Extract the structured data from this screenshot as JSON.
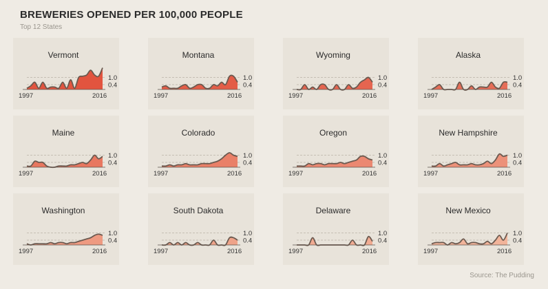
{
  "title": "BREWERIES OPENED PER 100,000 PEOPLE",
  "subtitle": "Top 12 States",
  "source": "Source: The Pudding",
  "colors": {
    "background": "#efebe4",
    "panel": "#e8e3da",
    "line": "#6b5a50",
    "ramp_high": "#e2543f",
    "ramp_low": "#f2b49a"
  },
  "chart_data": {
    "type": "area",
    "x": [
      1997,
      1998,
      1999,
      2000,
      2001,
      2002,
      2003,
      2004,
      2005,
      2006,
      2007,
      2008,
      2009,
      2010,
      2011,
      2012,
      2013,
      2014,
      2015,
      2016
    ],
    "x_tick_labels": [
      "1997",
      "2016"
    ],
    "reference_lines": [
      1.0,
      0.4
    ],
    "reference_labels": [
      "1.0",
      "0.4"
    ],
    "ylim": [
      0,
      1.8
    ],
    "grid": false,
    "series": [
      {
        "name": "Vermont",
        "values": [
          0.1,
          0.3,
          0.6,
          0.1,
          0.6,
          0.1,
          0.2,
          0.2,
          0.1,
          0.6,
          0.1,
          0.8,
          0.1,
          1.0,
          1.1,
          1.2,
          1.6,
          1.2,
          1.1,
          1.8
        ]
      },
      {
        "name": "Montana",
        "values": [
          0.2,
          0.3,
          0.1,
          0.1,
          0.1,
          0.3,
          0.4,
          0.1,
          0.2,
          0.4,
          0.4,
          0.1,
          0.1,
          0.4,
          0.3,
          0.6,
          0.4,
          1.1,
          1.1,
          0.6
        ]
      },
      {
        "name": "Wyoming",
        "values": [
          0.0,
          0.0,
          0.4,
          0.0,
          0.2,
          0.0,
          0.4,
          0.4,
          0.0,
          0.0,
          0.4,
          0.0,
          0.0,
          0.4,
          0.1,
          0.2,
          0.6,
          0.8,
          1.0,
          0.6
        ]
      },
      {
        "name": "Alaska",
        "values": [
          0.0,
          0.2,
          0.4,
          0.0,
          0.0,
          0.0,
          0.0,
          0.6,
          0.0,
          0.0,
          0.3,
          0.0,
          0.2,
          0.2,
          0.2,
          0.6,
          0.2,
          0.1,
          0.6,
          0.6
        ]
      },
      {
        "name": "Maine",
        "values": [
          0.1,
          0.1,
          0.5,
          0.4,
          0.4,
          0.1,
          0.0,
          0.0,
          0.1,
          0.1,
          0.1,
          0.2,
          0.2,
          0.3,
          0.4,
          0.3,
          0.6,
          1.0,
          0.7,
          0.9
        ]
      },
      {
        "name": "Colorado",
        "values": [
          0.1,
          0.1,
          0.2,
          0.1,
          0.2,
          0.2,
          0.3,
          0.2,
          0.2,
          0.2,
          0.3,
          0.3,
          0.3,
          0.4,
          0.5,
          0.7,
          1.0,
          1.2,
          1.0,
          0.9
        ]
      },
      {
        "name": "Oregon",
        "values": [
          0.1,
          0.1,
          0.1,
          0.3,
          0.2,
          0.3,
          0.3,
          0.2,
          0.3,
          0.3,
          0.3,
          0.4,
          0.3,
          0.4,
          0.5,
          0.6,
          0.9,
          0.9,
          0.7,
          0.6
        ]
      },
      {
        "name": "New Hampshire",
        "values": [
          0.1,
          0.1,
          0.3,
          0.1,
          0.2,
          0.3,
          0.4,
          0.2,
          0.2,
          0.2,
          0.3,
          0.2,
          0.2,
          0.3,
          0.5,
          0.3,
          0.6,
          1.1,
          0.9,
          1.0
        ]
      },
      {
        "name": "Washington",
        "values": [
          0.1,
          0.0,
          0.1,
          0.1,
          0.1,
          0.1,
          0.2,
          0.1,
          0.2,
          0.2,
          0.1,
          0.2,
          0.2,
          0.3,
          0.4,
          0.5,
          0.6,
          0.8,
          0.9,
          0.8
        ]
      },
      {
        "name": "South Dakota",
        "values": [
          0.0,
          0.0,
          0.2,
          0.0,
          0.2,
          0.0,
          0.2,
          0.0,
          0.0,
          0.2,
          0.0,
          0.0,
          0.0,
          0.4,
          0.0,
          0.0,
          0.0,
          0.6,
          0.6,
          0.4
        ]
      },
      {
        "name": "Delaware",
        "values": [
          0.0,
          0.0,
          0.0,
          0.0,
          0.6,
          0.0,
          0.0,
          0.0,
          0.0,
          0.0,
          0.0,
          0.0,
          0.0,
          0.0,
          0.4,
          0.0,
          0.0,
          0.0,
          0.7,
          0.3
        ]
      },
      {
        "name": "New Mexico",
        "values": [
          0.1,
          0.2,
          0.2,
          0.2,
          0.0,
          0.2,
          0.1,
          0.2,
          0.5,
          0.1,
          0.2,
          0.2,
          0.1,
          0.1,
          0.3,
          0.1,
          0.4,
          0.8,
          0.4,
          1.0
        ]
      }
    ]
  }
}
